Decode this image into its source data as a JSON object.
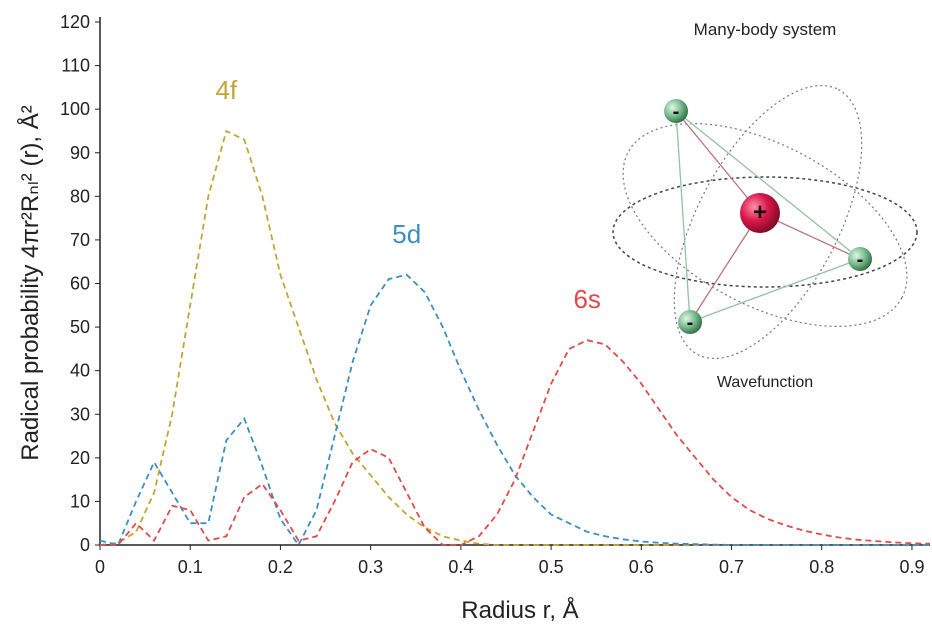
{
  "chart_data": {
    "type": "line",
    "x_label": "Radius r, Å",
    "y_label": "Radical probability 4πr²Rₙₗ² (r), Å²",
    "x": [
      0,
      0.02,
      0.04,
      0.06,
      0.08,
      0.1,
      0.12,
      0.14,
      0.16,
      0.18,
      0.2,
      0.22,
      0.24,
      0.26,
      0.28,
      0.3,
      0.32,
      0.34,
      0.36,
      0.38,
      0.4,
      0.42,
      0.44,
      0.46,
      0.48,
      0.5,
      0.52,
      0.54,
      0.56,
      0.58,
      0.6,
      0.62,
      0.64,
      0.66,
      0.68,
      0.7,
      0.72,
      0.74,
      0.76,
      0.78,
      0.8,
      0.82,
      0.84,
      0.86,
      0.88,
      0.9,
      0.92
    ],
    "series": [
      {
        "name": "4f",
        "color": "#c4a436",
        "values": [
          0,
          0.5,
          3,
          12,
          30,
          55,
          80,
          95,
          93,
          80,
          62,
          50,
          38,
          28,
          21,
          16,
          11,
          7,
          4,
          2,
          1,
          0.3,
          0,
          0,
          0,
          0,
          0,
          0,
          0,
          0,
          0,
          0,
          0,
          0,
          0,
          0,
          0,
          0,
          0,
          0,
          0,
          0,
          0,
          0,
          0,
          0,
          0
        ]
      },
      {
        "name": "5d",
        "color": "#3b8fc2",
        "values": [
          1,
          0,
          10,
          19,
          12,
          5,
          5,
          24,
          29,
          18,
          6,
          0,
          8,
          25,
          42,
          55,
          61,
          62,
          58,
          50,
          40,
          31,
          23,
          16,
          11,
          7,
          5,
          3,
          2,
          1.3,
          0.8,
          0.5,
          0.3,
          0.2,
          0.1,
          0,
          0,
          0,
          0,
          0,
          0,
          0,
          0,
          0,
          0,
          0,
          0
        ]
      },
      {
        "name": "6s",
        "color": "#e04a4a",
        "values": [
          0,
          0,
          5,
          1,
          9,
          8,
          1,
          2,
          11,
          14,
          8,
          1,
          2,
          10,
          19,
          22,
          20,
          12,
          4,
          0,
          0,
          2,
          7,
          15,
          26,
          37,
          45,
          47,
          46,
          42,
          37,
          31,
          25,
          20,
          15,
          11,
          8,
          6,
          4.5,
          3.3,
          2.4,
          1.7,
          1.2,
          0.9,
          0.6,
          0.4,
          0.3
        ]
      }
    ],
    "xlim": [
      0,
      0.92
    ],
    "xticks": [
      0,
      0.1,
      0.2,
      0.3,
      0.4,
      0.5,
      0.6,
      0.7,
      0.8,
      0.9
    ],
    "ylim": [
      0,
      120
    ],
    "yticks": [
      0,
      10,
      20,
      30,
      40,
      50,
      60,
      70,
      80,
      90,
      100,
      110,
      120
    ],
    "line_style": "dashed"
  },
  "inset": {
    "title": "Many-body system",
    "caption": "Wavefunction",
    "nucleus": "+",
    "electrons": [
      "-",
      "-",
      "-"
    ]
  }
}
